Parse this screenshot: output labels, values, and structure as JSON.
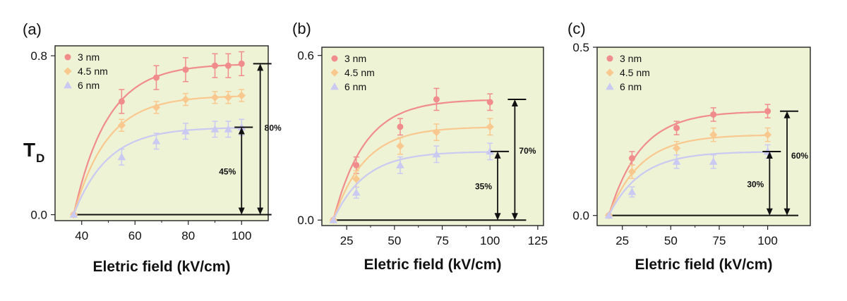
{
  "figure": {
    "ylabel_main": "T",
    "ylabel_sub": "D"
  },
  "colors": {
    "3 nm": "#f08c8c",
    "4.5 nm": "#f9c88e",
    "6 nm": "#c9c9f2",
    "background": "#eef3d6"
  },
  "chart_data": [
    {
      "type": "scatter",
      "panel": "(a)",
      "title": "",
      "xlabel": "Eletric field (kV/cm)",
      "ylabel": "T_D",
      "xlim": [
        30,
        110
      ],
      "ylim": [
        -0.03,
        0.85
      ],
      "xticks": [
        40,
        60,
        80,
        100
      ],
      "yticks": [
        0.0,
        0.8
      ],
      "ytick_labels": [
        "0.0",
        "0.8"
      ],
      "legend_placement": "top-left",
      "series": [
        {
          "name": "3 nm",
          "marker": "circle",
          "x": [
            37,
            55,
            68,
            79,
            90,
            95,
            100
          ],
          "y": [
            0.0,
            0.57,
            0.69,
            0.73,
            0.75,
            0.75,
            0.76
          ],
          "err": [
            0.0,
            0.06,
            0.06,
            0.06,
            0.06,
            0.06,
            0.06
          ],
          "fit_ymax": 0.76
        },
        {
          "name": "4.5 nm",
          "marker": "diamond",
          "x": [
            37,
            55,
            68,
            79,
            90,
            95,
            100
          ],
          "y": [
            0.0,
            0.45,
            0.54,
            0.58,
            0.59,
            0.59,
            0.6
          ],
          "err": [
            0.0,
            0.03,
            0.03,
            0.03,
            0.03,
            0.03,
            0.03
          ],
          "fit_ymax": 0.6
        },
        {
          "name": "6 nm",
          "marker": "triangle",
          "x": [
            37,
            55,
            68,
            79,
            90,
            95,
            100
          ],
          "y": [
            0.0,
            0.29,
            0.37,
            0.42,
            0.43,
            0.43,
            0.44
          ],
          "err": [
            0.0,
            0.04,
            0.04,
            0.04,
            0.04,
            0.04,
            0.04
          ],
          "fit_ymax": 0.44
        }
      ],
      "annotations": {
        "arrow_x": [
          100,
          107
        ],
        "labels": [
          "45%",
          "80%"
        ],
        "levels": [
          0.44,
          0.76
        ]
      }
    },
    {
      "type": "scatter",
      "panel": "(b)",
      "title": "",
      "xlabel": "Eletric field (kV/cm)",
      "ylabel": "T_D",
      "xlim": [
        12,
        128
      ],
      "ylim": [
        -0.02,
        0.63
      ],
      "xticks": [
        25,
        50,
        75,
        100,
        125
      ],
      "yticks": [
        0.0,
        0.6
      ],
      "ytick_labels": [
        "0.0",
        "0.6"
      ],
      "legend_placement": "top-left",
      "series": [
        {
          "name": "3 nm",
          "marker": "circle",
          "x": [
            18,
            30,
            53,
            72,
            100
          ],
          "y": [
            0.0,
            0.2,
            0.34,
            0.44,
            0.43
          ],
          "err": [
            0.0,
            0.03,
            0.03,
            0.04,
            0.03
          ],
          "fit_ymax": 0.44
        },
        {
          "name": "4.5 nm",
          "marker": "diamond",
          "x": [
            18,
            30,
            53,
            72,
            100
          ],
          "y": [
            0.0,
            0.15,
            0.27,
            0.32,
            0.34
          ],
          "err": [
            0.0,
            0.03,
            0.03,
            0.03,
            0.03
          ],
          "fit_ymax": 0.34
        },
        {
          "name": "6 nm",
          "marker": "triangle",
          "x": [
            18,
            30,
            53,
            72,
            100
          ],
          "y": [
            0.0,
            0.1,
            0.2,
            0.24,
            0.25
          ],
          "err": [
            0.0,
            0.02,
            0.03,
            0.03,
            0.03
          ],
          "fit_ymax": 0.25
        }
      ],
      "annotations": {
        "arrow_x": [
          104,
          113
        ],
        "labels": [
          "35%",
          "70%"
        ],
        "levels": [
          0.25,
          0.44
        ]
      }
    },
    {
      "type": "scatter",
      "panel": "(c)",
      "title": "",
      "xlabel": "Eletric field (kV/cm)",
      "ylabel": "T_D",
      "xlim": [
        12,
        122
      ],
      "ylim": [
        -0.03,
        0.5
      ],
      "xticks": [
        25,
        50,
        75,
        100
      ],
      "yticks": [
        0.0,
        0.5
      ],
      "ytick_labels": [
        "0.0",
        "0.5"
      ],
      "legend_placement": "top-left",
      "series": [
        {
          "name": "3 nm",
          "marker": "circle",
          "x": [
            18,
            30,
            53,
            72,
            100
          ],
          "y": [
            0.0,
            0.17,
            0.26,
            0.3,
            0.31
          ],
          "err": [
            0.0,
            0.02,
            0.02,
            0.02,
            0.02
          ],
          "fit_ymax": 0.31
        },
        {
          "name": "4.5 nm",
          "marker": "diamond",
          "x": [
            18,
            30,
            53,
            72,
            100
          ],
          "y": [
            0.0,
            0.13,
            0.2,
            0.24,
            0.24
          ],
          "err": [
            0.0,
            0.02,
            0.02,
            0.02,
            0.02
          ],
          "fit_ymax": 0.24
        },
        {
          "name": "6 nm",
          "marker": "triangle",
          "x": [
            18,
            30,
            53,
            72,
            100
          ],
          "y": [
            0.0,
            0.07,
            0.16,
            0.16,
            0.19
          ],
          "err": [
            0.0,
            0.015,
            0.02,
            0.02,
            0.02
          ],
          "fit_ymax": 0.19
        }
      ],
      "annotations": {
        "arrow_x": [
          101,
          110
        ],
        "labels": [
          "30%",
          "60%"
        ],
        "levels": [
          0.19,
          0.31
        ]
      }
    }
  ]
}
